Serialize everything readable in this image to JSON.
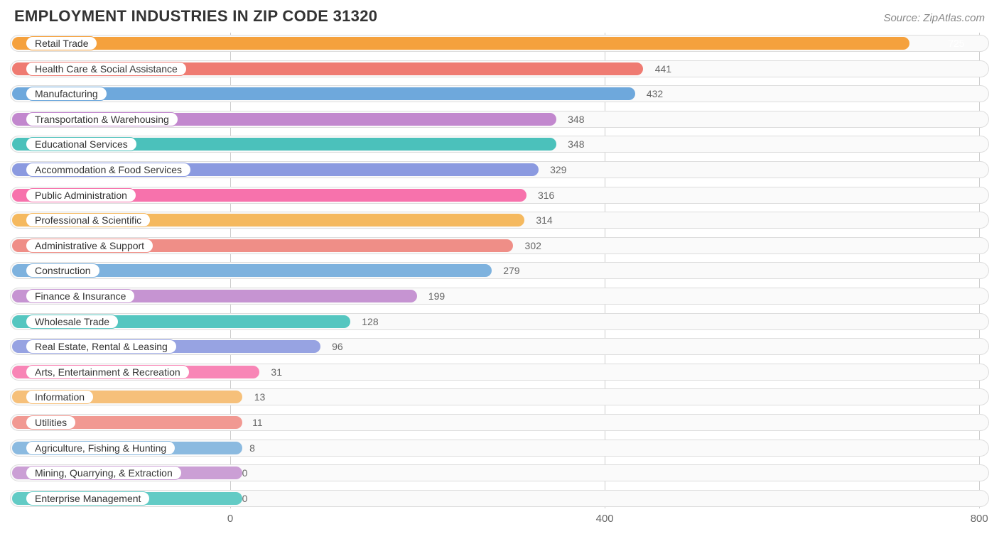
{
  "header": {
    "title": "EMPLOYMENT INDUSTRIES IN ZIP CODE 31320",
    "source": "Source: ZipAtlas.com"
  },
  "chart": {
    "type": "bar-horizontal",
    "x_min": 0,
    "x_max": 800,
    "x_ticks": [
      0,
      400,
      800
    ],
    "plot_left_pct": 22.5,
    "plot_right_pct": 99.0,
    "track_bg": "#fafafa",
    "track_border": "#dddddd",
    "grid_color": "#cccccc",
    "value_threshold_inside": 700,
    "value_color_outside": "#666666",
    "value_color_inside": "#ffffff",
    "title_color": "#333333",
    "source_color": "#888888",
    "colors": [
      "#f5a13d",
      "#ef7b72",
      "#6ea8dc",
      "#c288ce",
      "#4bc1bb",
      "#8b9ae0",
      "#f772ac",
      "#f5b95f",
      "#ef8e87",
      "#7eb2de",
      "#c694d2",
      "#55c6c0",
      "#97a3e2",
      "#f885b6",
      "#f6c07a",
      "#f19992",
      "#8bbae0",
      "#cb9fd5",
      "#63cbc5"
    ],
    "items": [
      {
        "label": "Retail Trade",
        "value": 725
      },
      {
        "label": "Health Care & Social Assistance",
        "value": 441
      },
      {
        "label": "Manufacturing",
        "value": 432
      },
      {
        "label": "Transportation & Warehousing",
        "value": 348
      },
      {
        "label": "Educational Services",
        "value": 348
      },
      {
        "label": "Accommodation & Food Services",
        "value": 329
      },
      {
        "label": "Public Administration",
        "value": 316
      },
      {
        "label": "Professional & Scientific",
        "value": 314
      },
      {
        "label": "Administrative & Support",
        "value": 302
      },
      {
        "label": "Construction",
        "value": 279
      },
      {
        "label": "Finance & Insurance",
        "value": 199
      },
      {
        "label": "Wholesale Trade",
        "value": 128
      },
      {
        "label": "Real Estate, Rental & Leasing",
        "value": 96
      },
      {
        "label": "Arts, Entertainment & Recreation",
        "value": 31
      },
      {
        "label": "Information",
        "value": 13
      },
      {
        "label": "Utilities",
        "value": 11
      },
      {
        "label": "Agriculture, Fishing & Hunting",
        "value": 8
      },
      {
        "label": "Mining, Quarrying, & Extraction",
        "value": 0
      },
      {
        "label": "Enterprise Management",
        "value": 0
      }
    ]
  }
}
